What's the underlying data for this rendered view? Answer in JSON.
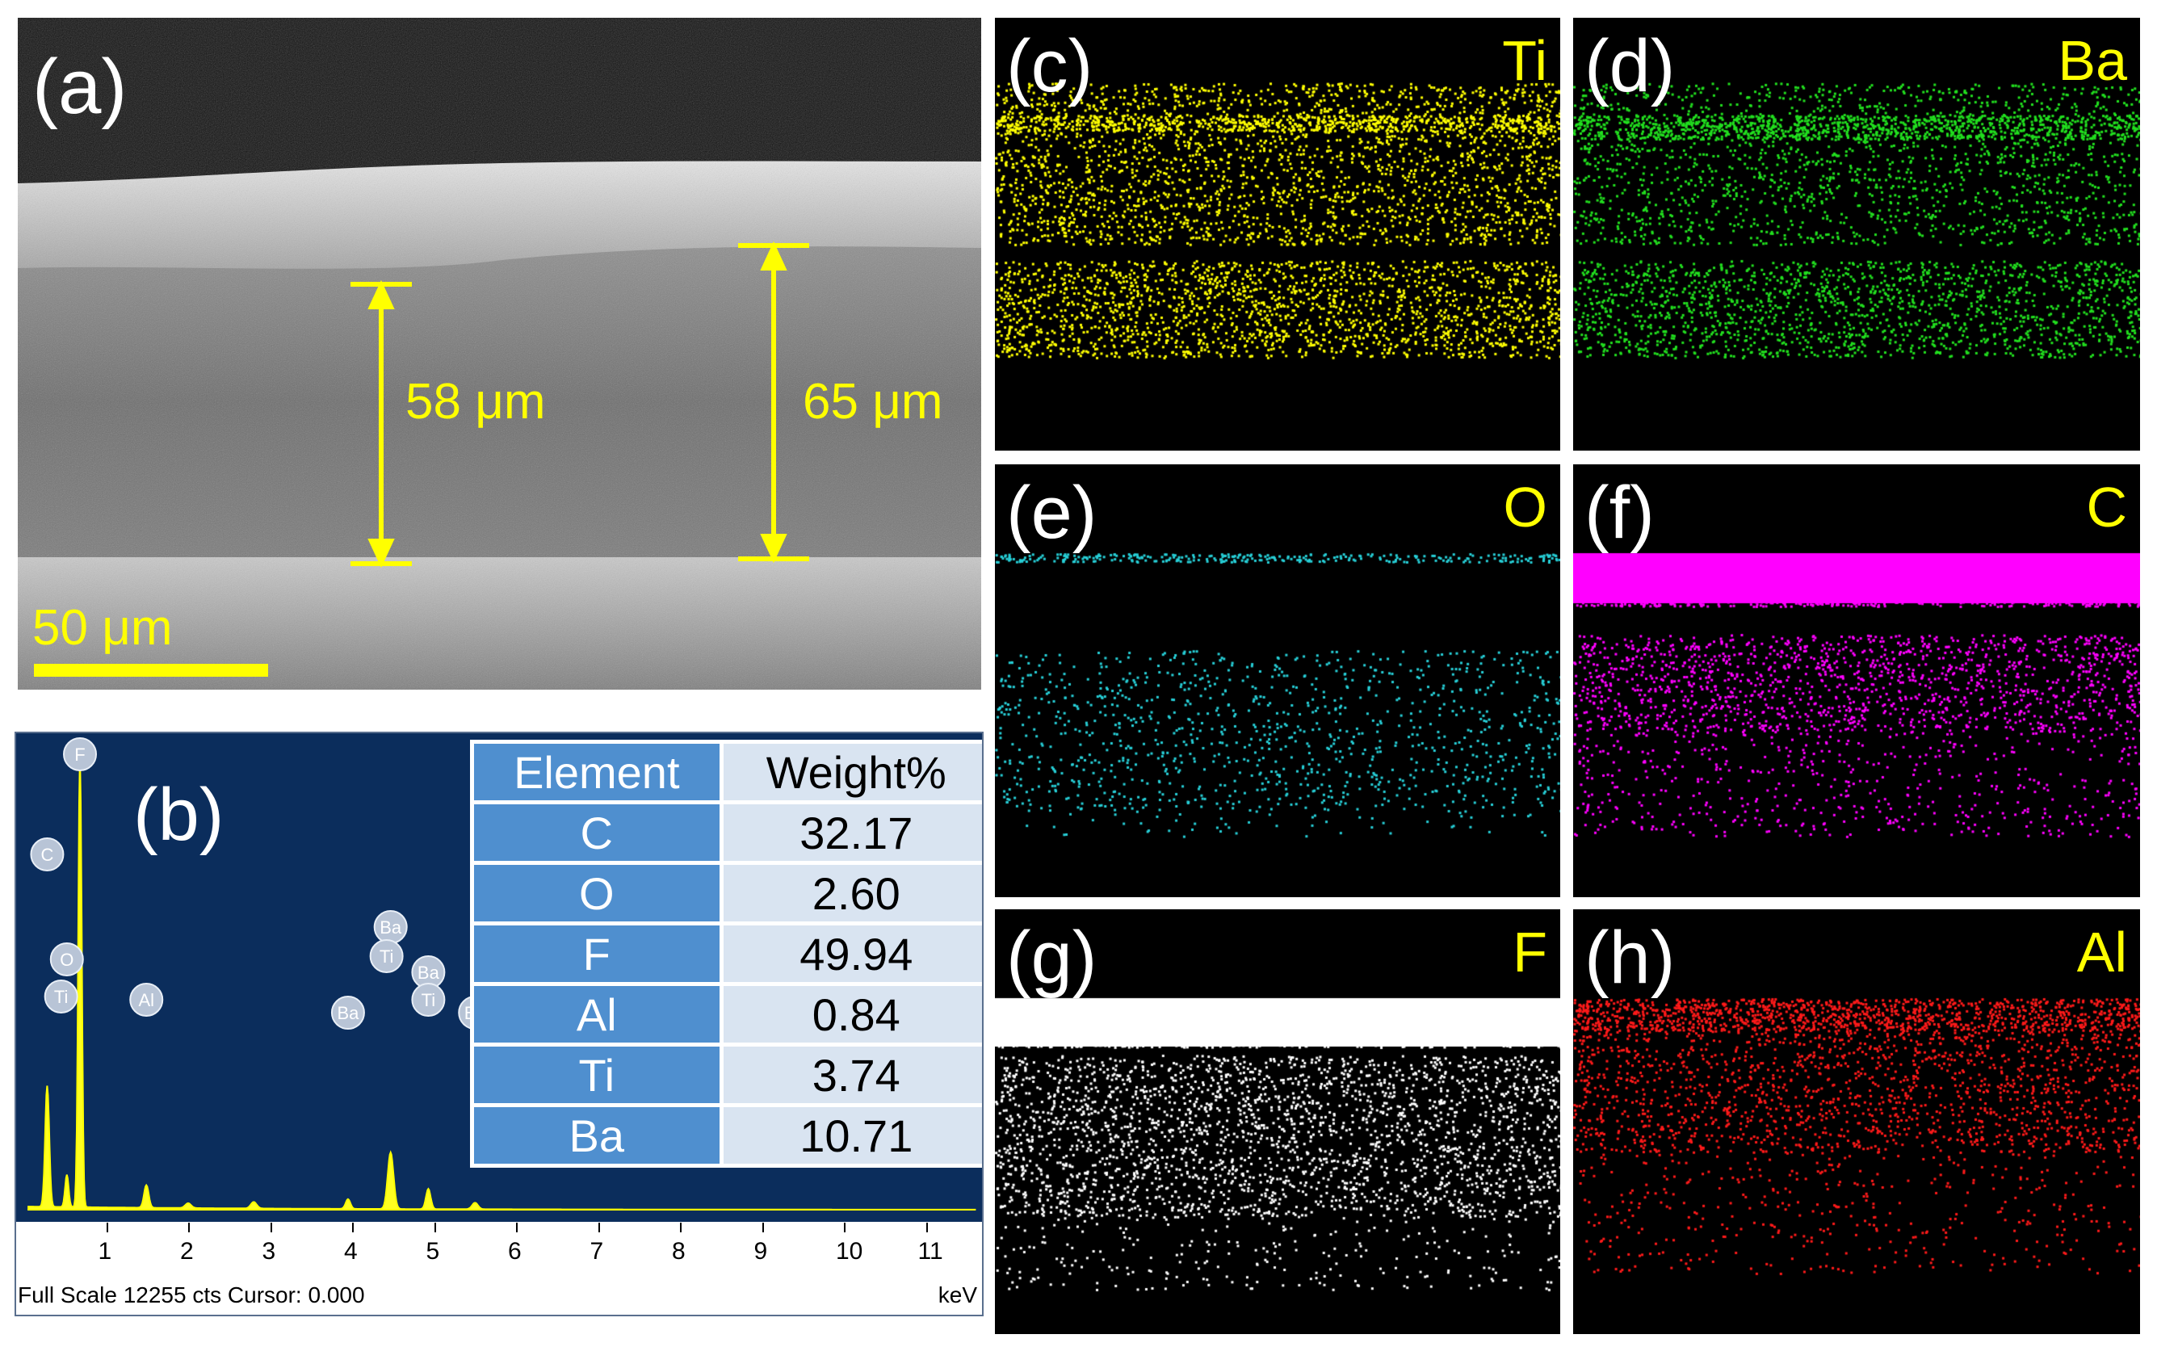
{
  "panel_a": {
    "letter": "(a)",
    "measure_left": "58 μm",
    "measure_right": "65 μm",
    "scale_bar": "50 μm",
    "annotation_color": "#ffff00"
  },
  "panel_b": {
    "letter": "(b)",
    "table_headers": [
      "Element",
      "Weight%"
    ],
    "table_rows": [
      {
        "element": "C",
        "weight": "32.17"
      },
      {
        "element": "O",
        "weight": "2.60"
      },
      {
        "element": "F",
        "weight": "49.94"
      },
      {
        "element": "Al",
        "weight": "0.84"
      },
      {
        "element": "Ti",
        "weight": "3.74"
      },
      {
        "element": "Ba",
        "weight": "10.71"
      }
    ],
    "x_ticks": [
      "1",
      "2",
      "3",
      "4",
      "5",
      "6",
      "7",
      "8",
      "9",
      "10",
      "11"
    ],
    "footer_left": "Full Scale 12255 cts Cursor: 0.000",
    "footer_right": "keV",
    "peak_labels": [
      "F",
      "C",
      "O",
      "Ti",
      "Al",
      "Ba",
      "Ti",
      "Ba",
      "Ba",
      "Ti",
      "Ba"
    ]
  },
  "maps": [
    {
      "letter": "(c)",
      "element": "Ti",
      "color": "#ffff00"
    },
    {
      "letter": "(d)",
      "element": "Ba",
      "color": "#22e01f"
    },
    {
      "letter": "(e)",
      "element": "O",
      "color": "#27d0d8"
    },
    {
      "letter": "(f)",
      "element": "C",
      "color": "#ff00ff"
    },
    {
      "letter": "(g)",
      "element": "F",
      "color": "#ffffff"
    },
    {
      "letter": "(h)",
      "element": "Al",
      "color": "#ff1a1a"
    }
  ],
  "chart_data": {
    "type": "bar",
    "title": "",
    "xlabel": "keV",
    "ylabel": "",
    "categories": [
      "C",
      "O",
      "F",
      "Al",
      "Ti",
      "Ba"
    ],
    "values": [
      32.17,
      2.6,
      49.94,
      0.84,
      3.74,
      10.71
    ],
    "table_columns": [
      "Element",
      "Weight%"
    ]
  }
}
